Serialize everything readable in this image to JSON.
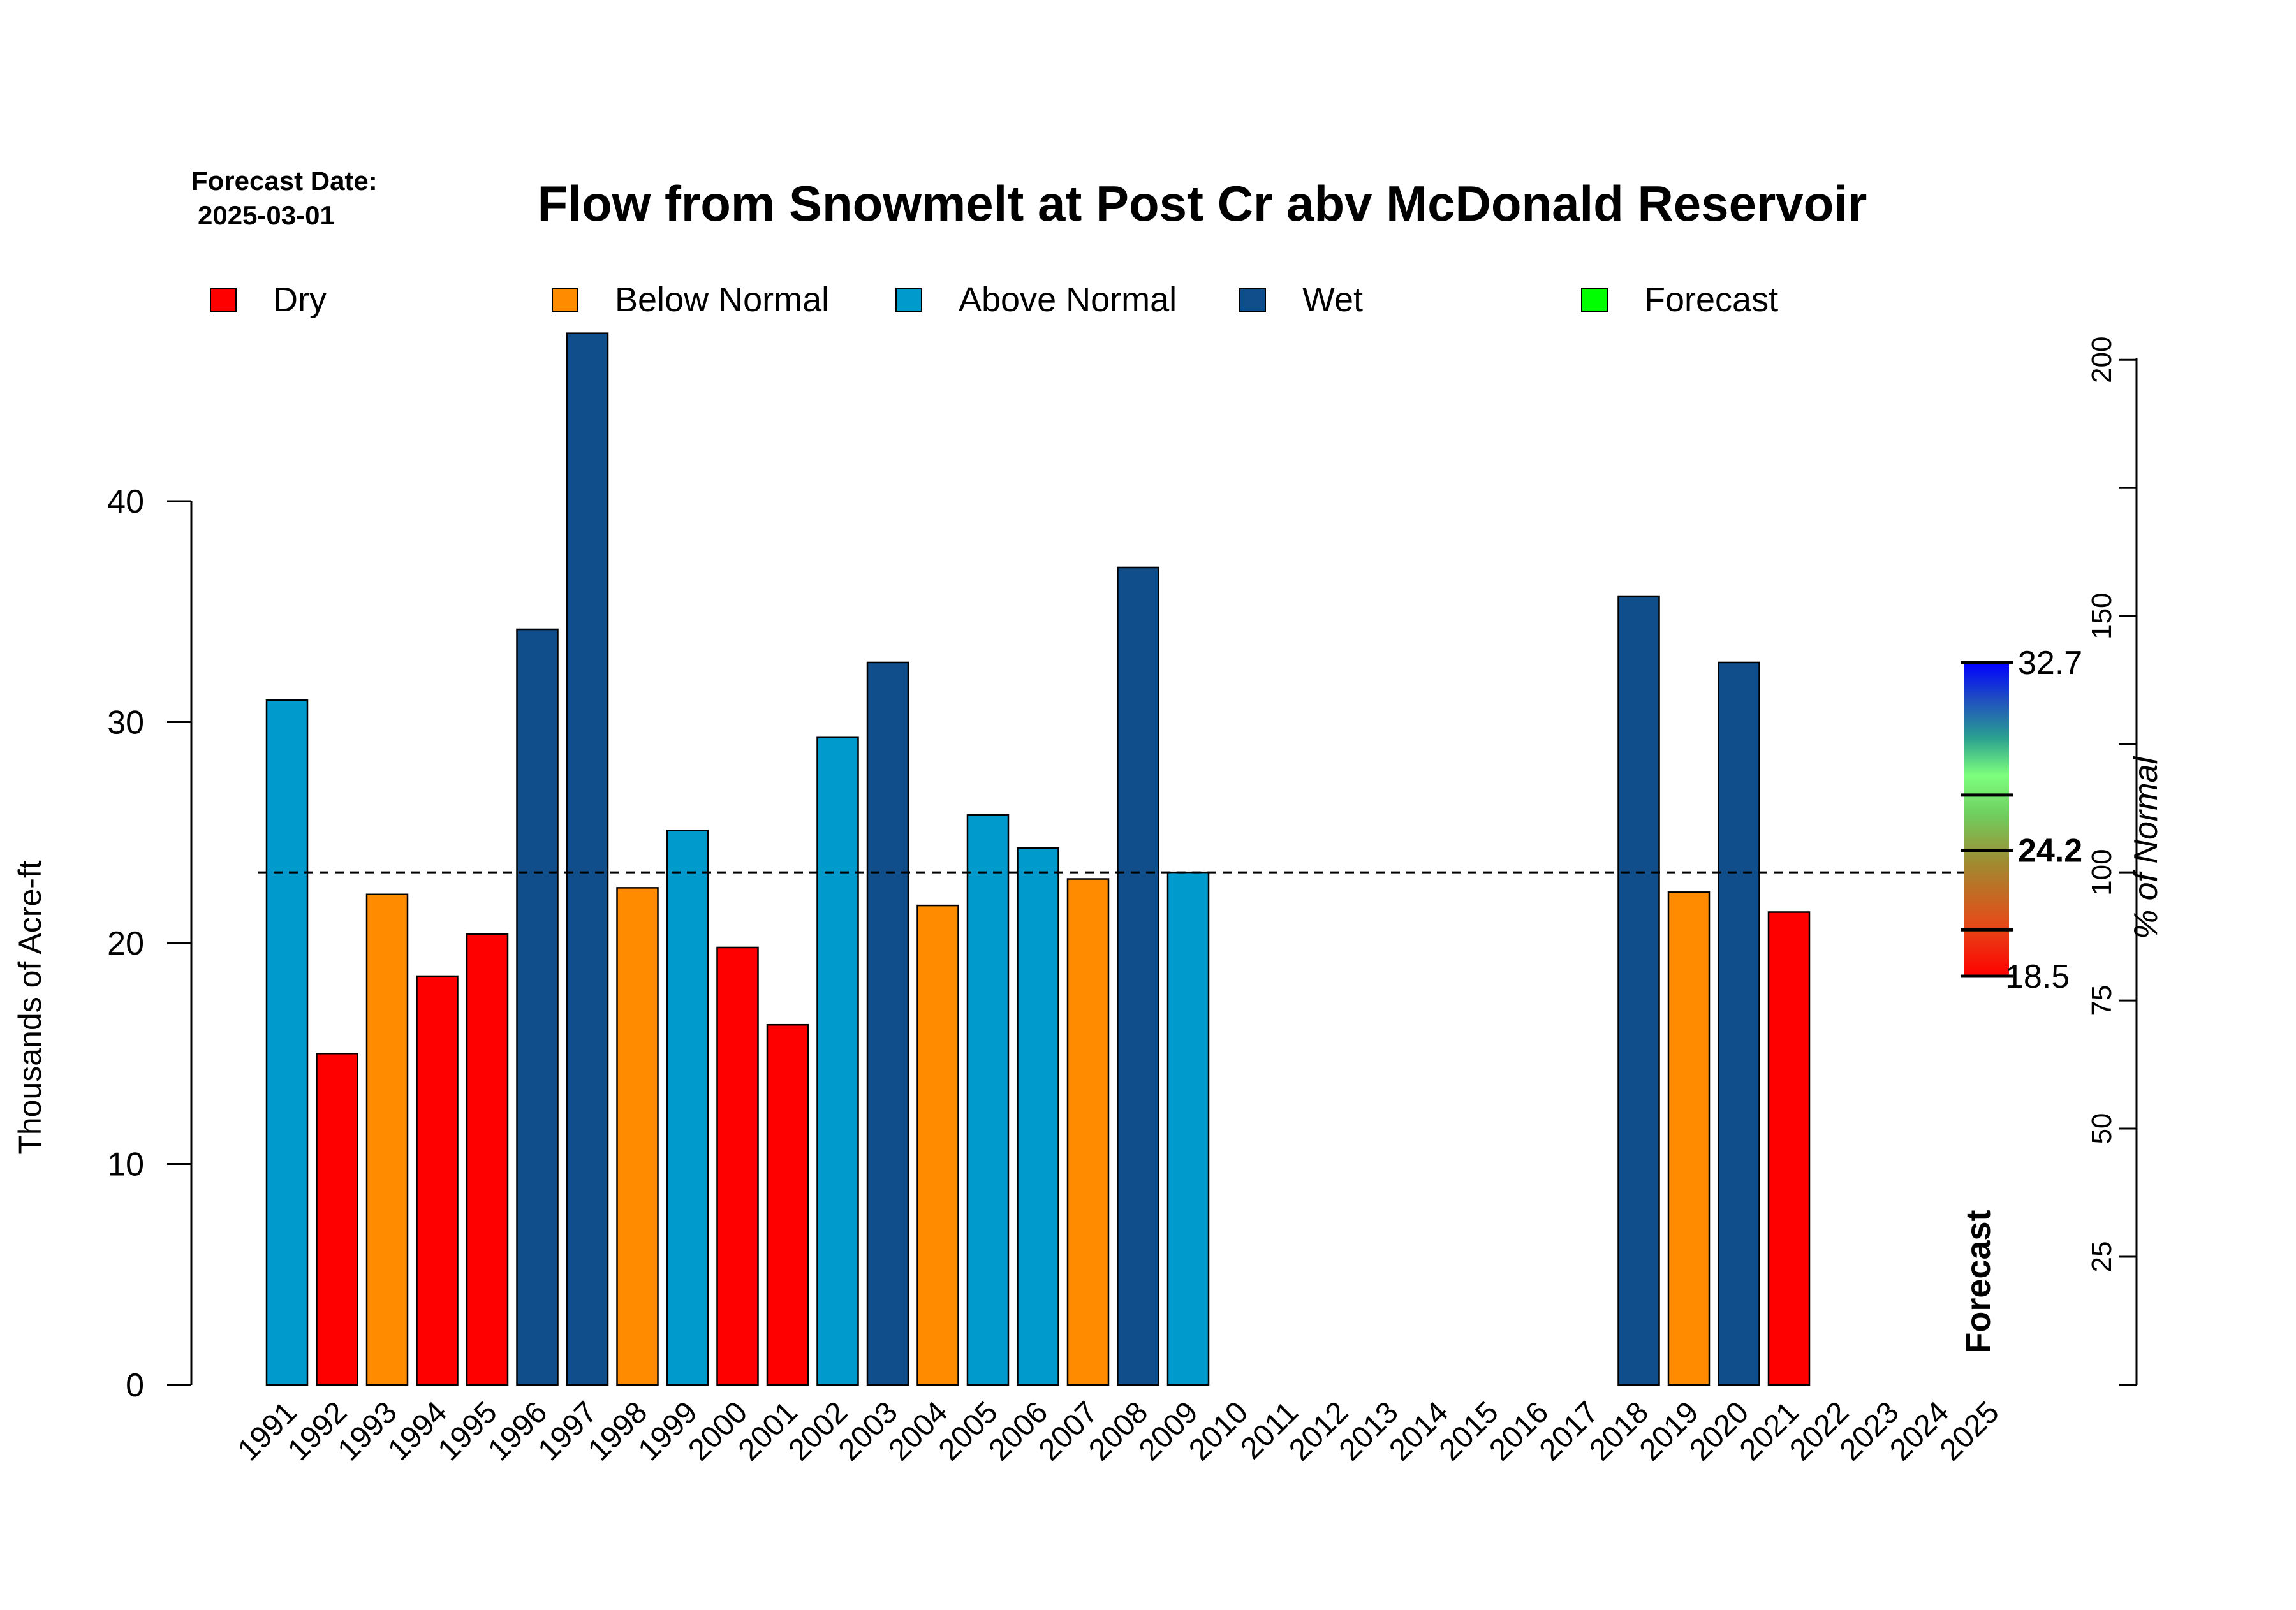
{
  "forecast_date_label": "Forecast Date:",
  "forecast_date_value": "2025-03-01",
  "forecast_vertical_label": "Forecast",
  "colors": {
    "Dry": "#ff0000",
    "Below Normal": "#ff8c00",
    "Above Normal": "#009ACD",
    "Wet": "#104E8B",
    "Forecast": "#00ff00",
    "dashed_line": "#000000"
  },
  "chart_data": {
    "type": "bar",
    "title": "Flow from Snowmelt at Post Cr abv McDonald Reservoir",
    "ylabel": "Thousands of Acre-ft",
    "y2label": "% of Normal",
    "ylim": [
      0,
      47.7
    ],
    "yticks": [
      0,
      10,
      20,
      30,
      40
    ],
    "y2ticks": [
      25,
      50,
      75,
      100,
      150,
      200
    ],
    "y2_unlabeled_ticks": [
      125,
      175
    ],
    "normal_value": 23.2,
    "legend": [
      {
        "label": "Dry",
        "color": "#ff0000"
      },
      {
        "label": "Below Normal",
        "color": "#ff8c00"
      },
      {
        "label": "Above Normal",
        "color": "#009ACD"
      },
      {
        "label": "Wet",
        "color": "#104E8B"
      },
      {
        "label": "Forecast",
        "color": "#00ff00"
      }
    ],
    "categories": [
      "1991",
      "1992",
      "1993",
      "1994",
      "1995",
      "1996",
      "1997",
      "1998",
      "1999",
      "2000",
      "2001",
      "2002",
      "2003",
      "2004",
      "2005",
      "2006",
      "2007",
      "2008",
      "2009",
      "2010",
      "2011",
      "2012",
      "2013",
      "2014",
      "2015",
      "2016",
      "2017",
      "2018",
      "2019",
      "2020",
      "2021",
      "2022",
      "2023",
      "2024",
      "2025"
    ],
    "values": [
      31.0,
      15.0,
      22.2,
      18.5,
      20.4,
      34.2,
      47.6,
      22.5,
      25.1,
      19.8,
      16.3,
      29.3,
      32.7,
      21.7,
      25.8,
      24.3,
      22.9,
      37.0,
      23.2,
      null,
      null,
      null,
      null,
      null,
      null,
      null,
      null,
      35.7,
      22.3,
      32.7,
      21.4,
      null,
      null,
      null,
      null
    ],
    "classes": [
      "Above Normal",
      "Dry",
      "Below Normal",
      "Dry",
      "Dry",
      "Wet",
      "Wet",
      "Below Normal",
      "Above Normal",
      "Dry",
      "Dry",
      "Above Normal",
      "Wet",
      "Below Normal",
      "Above Normal",
      "Above Normal",
      "Below Normal",
      "Wet",
      "Above Normal",
      null,
      null,
      null,
      null,
      null,
      null,
      null,
      null,
      "Wet",
      "Below Normal",
      "Wet",
      "Dry",
      null,
      null,
      null,
      null
    ],
    "forecast_range": {
      "max": 32.7,
      "median": 24.2,
      "min": 18.5,
      "max_label": "32.7",
      "median_label": "24.2",
      "min_label": "18.5",
      "tick_values": [
        18.5,
        20.6,
        24.2,
        26.7,
        32.7
      ]
    }
  }
}
